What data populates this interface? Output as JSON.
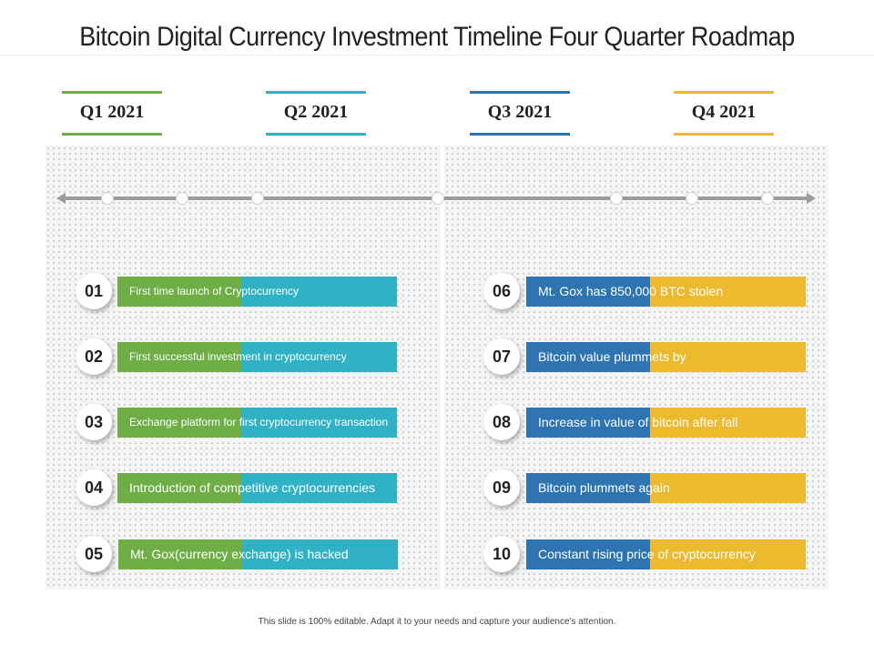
{
  "title": "Bitcoin Digital Currency Investment Timeline Four Quarter Roadmap",
  "colors": {
    "green": "#6fad46",
    "teal": "#31b2c4",
    "blue": "#2e74b0",
    "yellow": "#ecba2f",
    "timeline": "#9b9b9b"
  },
  "quarters": [
    {
      "label": "Q1 2021",
      "color": "#6fad46"
    },
    {
      "label": "Q2 2021",
      "color": "#31b2c4"
    },
    {
      "label": "Q3 2021",
      "color": "#2e74b0"
    },
    {
      "label": "Q4 2021",
      "color": "#ecba2f"
    }
  ],
  "left_items": [
    {
      "num": "01",
      "text": "First time launch of Cryptocurrency"
    },
    {
      "num": "02",
      "text": "First successful investment in cryptocurrency"
    },
    {
      "num": "03",
      "text": "Exchange platform for first cryptocurrency transaction"
    },
    {
      "num": "04",
      "text": "Introduction  of competitive  cryptocurrencies"
    },
    {
      "num": "05",
      "text": "Mt. Gox(currency exchange) is hacked"
    }
  ],
  "right_items": [
    {
      "num": "06",
      "text": "Mt. Gox has 850,000 BTC stolen"
    },
    {
      "num": "07",
      "text": "Bitcoin value plummets by"
    },
    {
      "num": "08",
      "text": "Increase in value of bitcoin after fall"
    },
    {
      "num": "09",
      "text": "Bitcoin plummets  again"
    },
    {
      "num": "10",
      "text": "Constant rising price of cryptocurrency"
    }
  ],
  "footer": "This slide is 100% editable. Adapt it to your needs and capture your audience's attention."
}
